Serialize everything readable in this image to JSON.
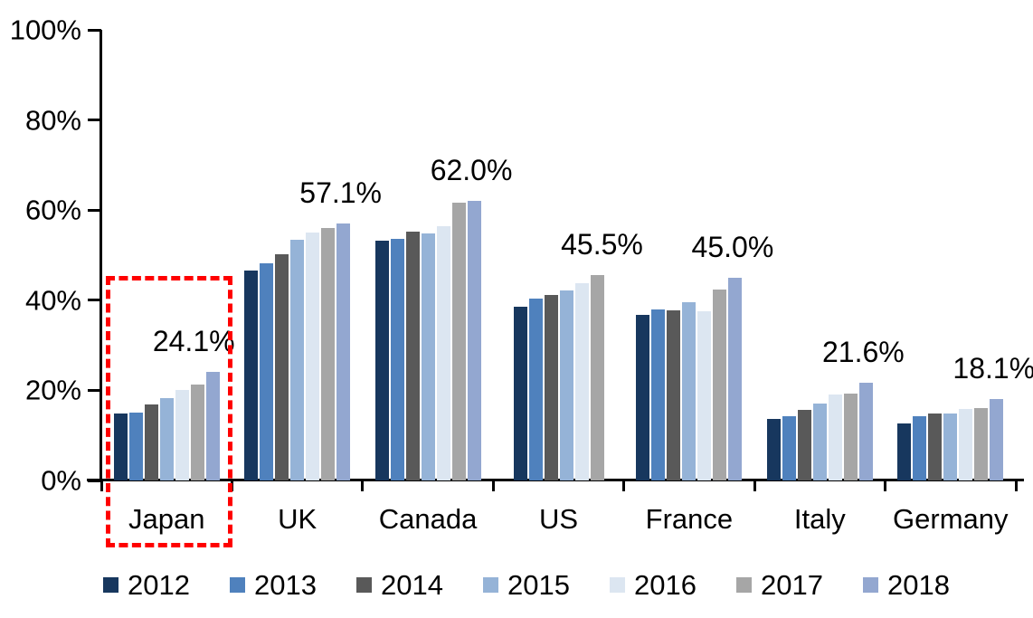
{
  "chart_data": {
    "type": "bar",
    "title": "",
    "xlabel": "",
    "ylabel": "",
    "ylim": [
      0,
      100
    ],
    "y_ticks": [
      "0%",
      "20%",
      "40%",
      "60%",
      "80%",
      "100%"
    ],
    "grid": false,
    "legend_position": "bottom",
    "categories": [
      "Japan",
      "UK",
      "Canada",
      "US",
      "France",
      "Italy",
      "Germany"
    ],
    "series": [
      {
        "name": "2012",
        "color": "#17375E",
        "values": [
          14.9,
          46.6,
          53.2,
          38.5,
          36.7,
          13.6,
          12.7
        ]
      },
      {
        "name": "2013",
        "color": "#4F81BD",
        "values": [
          15.1,
          48.1,
          53.6,
          40.4,
          37.9,
          14.3,
          14.3
        ]
      },
      {
        "name": "2014",
        "color": "#595959",
        "values": [
          16.8,
          50.2,
          55.2,
          41.2,
          37.8,
          15.7,
          14.8
        ]
      },
      {
        "name": "2015",
        "color": "#95B3D7",
        "values": [
          18.3,
          53.4,
          54.9,
          42.2,
          39.6,
          17.1,
          14.9
        ]
      },
      {
        "name": "2016",
        "color": "#DCE6F1",
        "values": [
          20.1,
          55.0,
          56.4,
          43.8,
          37.6,
          19.1,
          15.8
        ]
      },
      {
        "name": "2017",
        "color": "#A6A6A6",
        "values": [
          21.3,
          56.0,
          61.6,
          45.5,
          42.4,
          19.3,
          16.1
        ]
      },
      {
        "name": "2018",
        "color": "#93A7D0",
        "values": [
          24.1,
          57.1,
          62.0,
          null,
          45.0,
          21.6,
          18.1
        ]
      }
    ],
    "annotations": [
      {
        "category": "Japan",
        "text": "24.1%"
      },
      {
        "category": "UK",
        "text": "57.1%"
      },
      {
        "category": "Canada",
        "text": "62.0%"
      },
      {
        "category": "US",
        "text": "45.5%"
      },
      {
        "category": "France",
        "text": "45.0%"
      },
      {
        "category": "Italy",
        "text": "21.6%"
      },
      {
        "category": "Germany",
        "text": "18.1%"
      }
    ],
    "highlight": {
      "category": "Japan",
      "style": "red-dashed-box",
      "color": "#FF0000"
    }
  }
}
